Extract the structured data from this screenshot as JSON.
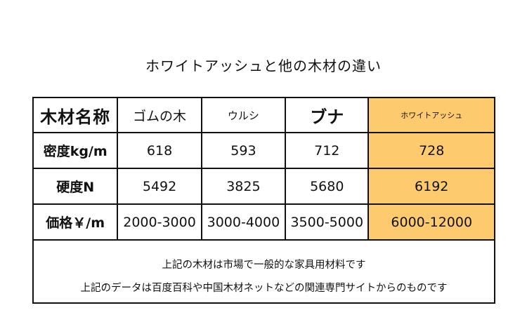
{
  "title": "ホワイトアッシュと他の木材の違い",
  "table": {
    "header": [
      "木材名称",
      "ゴムの木",
      "ウルシ",
      "ブナ",
      "ホワイトアッシュ"
    ],
    "rows": [
      {
        "label": "密度kg/m",
        "values": [
          "618",
          "593",
          "712",
          "728"
        ]
      },
      {
        "label": "硬度N",
        "values": [
          "5492",
          "3825",
          "5680",
          "6192"
        ]
      },
      {
        "label": "価格￥/m",
        "values": [
          "2000-3000",
          "3000-4000",
          "3500-5000",
          "6000-12000"
        ]
      }
    ],
    "highlight_color": "#fdcb6e"
  },
  "notes": [
    "上記の木材は市場で一般的な家具用材料です",
    "上記のデータは百度百科や中国木材ネットなどの関連専門サイトからのものです"
  ]
}
